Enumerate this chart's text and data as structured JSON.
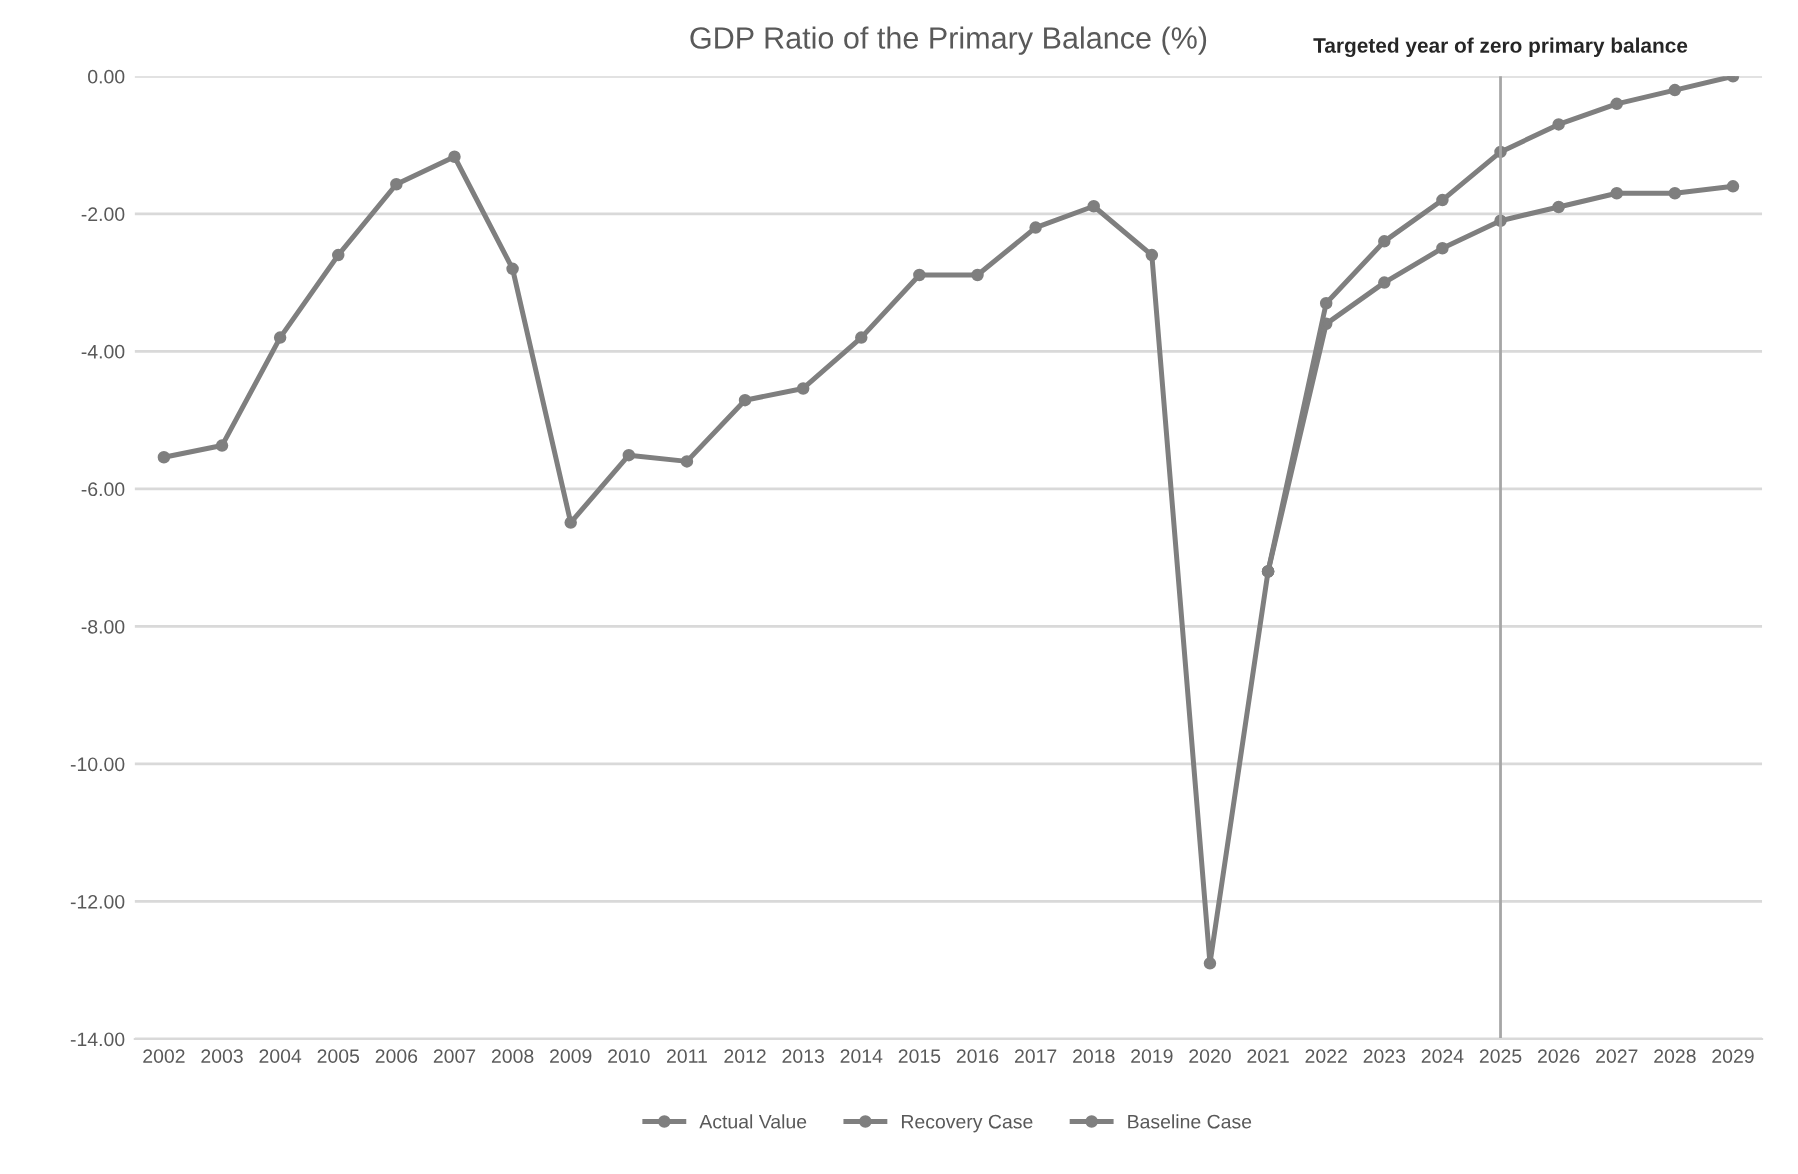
{
  "chart_data": {
    "type": "line",
    "title": "GDP Ratio of the Primary Balance (%)",
    "categories": [
      "2002",
      "2003",
      "2004",
      "2005",
      "2006",
      "2007",
      "2008",
      "2009",
      "2010",
      "2011",
      "2012",
      "2013",
      "2014",
      "2015",
      "2016",
      "2017",
      "2018",
      "2019",
      "2020",
      "2021",
      "2022",
      "2023",
      "2024",
      "2025",
      "2026",
      "2027",
      "2028",
      "2029"
    ],
    "series": [
      {
        "name": "Actual Value",
        "color": "#7f7f7f",
        "values": [
          -5.54,
          -5.37,
          -3.8,
          -2.6,
          -1.57,
          -1.17,
          -2.8,
          -6.49,
          -5.51,
          -5.6,
          -4.71,
          -4.54,
          -3.8,
          -2.89,
          -2.89,
          -2.2,
          -1.89,
          -2.6,
          -12.9,
          -7.2,
          null,
          null,
          null,
          null,
          null,
          null,
          null,
          null
        ]
      },
      {
        "name": "Recovery Case",
        "color": "#7f7f7f",
        "values": [
          null,
          null,
          null,
          null,
          null,
          null,
          null,
          null,
          null,
          null,
          null,
          null,
          null,
          null,
          null,
          null,
          null,
          null,
          null,
          -7.2,
          -3.3,
          -2.4,
          -1.8,
          -1.1,
          -0.7,
          -0.4,
          -0.2,
          0.0
        ]
      },
      {
        "name": "Baseline Case",
        "color": "#7f7f7f",
        "values": [
          null,
          null,
          null,
          null,
          null,
          null,
          null,
          null,
          null,
          null,
          null,
          null,
          null,
          null,
          null,
          null,
          null,
          null,
          null,
          -7.2,
          -3.6,
          -3.0,
          -2.5,
          -2.1,
          -1.9,
          -1.7,
          -1.7,
          -1.6
        ]
      }
    ],
    "ylim": [
      -14,
      0
    ],
    "yticks": [
      {
        "value": 0,
        "label": "0.00"
      },
      {
        "value": -2,
        "label": "-2.00"
      },
      {
        "value": -4,
        "label": "-4.00"
      },
      {
        "value": -6,
        "label": "-6.00"
      },
      {
        "value": -8,
        "label": "-8.00"
      },
      {
        "value": -10,
        "label": "-10.00"
      },
      {
        "value": -12,
        "label": "-12.00"
      },
      {
        "value": -14,
        "label": "-14.00"
      }
    ],
    "ref_lines": [
      {
        "axis": "x",
        "value": "2025",
        "label": "Targeted year of zero primary balance",
        "color": "#a6a6a6"
      }
    ],
    "grid": "y",
    "legend": "bottom",
    "marker": "circle",
    "line_style": "solid"
  }
}
